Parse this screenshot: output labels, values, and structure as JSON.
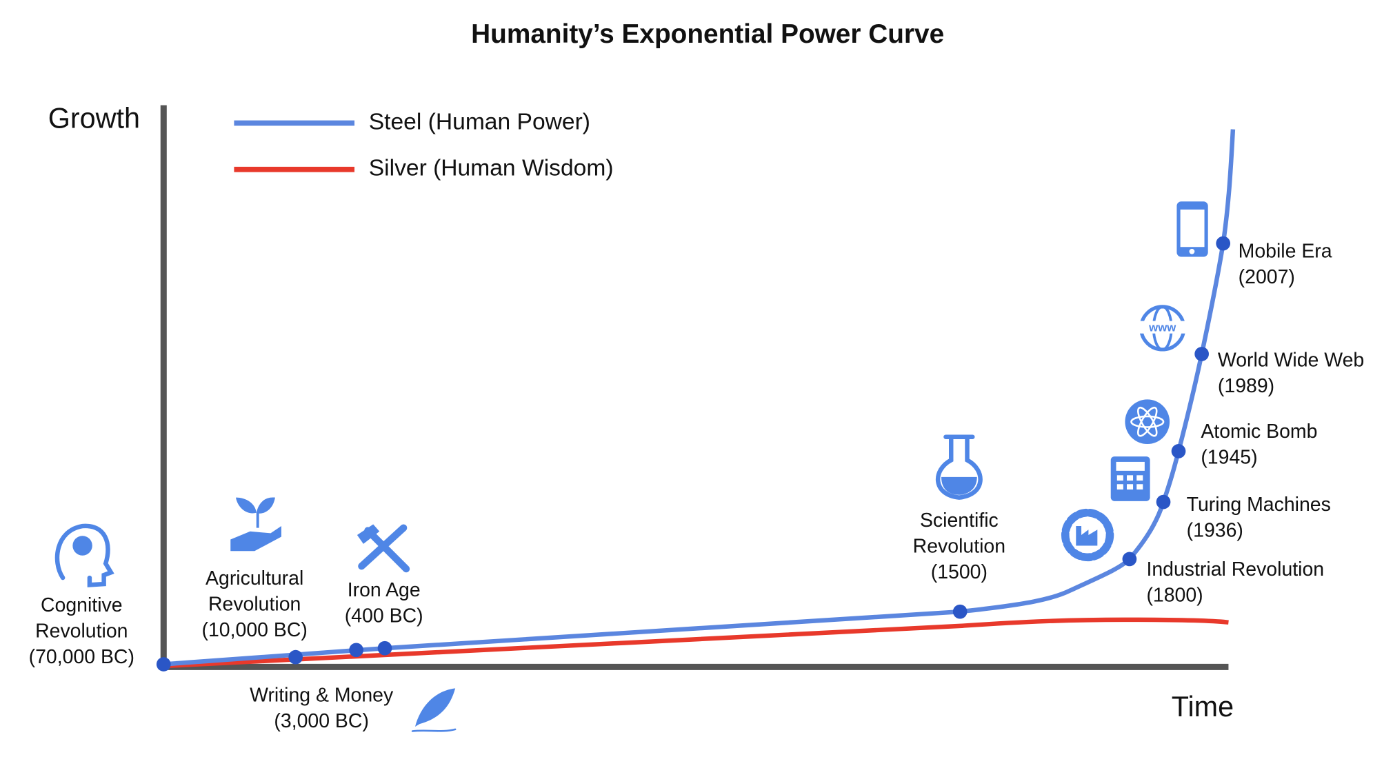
{
  "title": "Humanity’s Exponential Power Curve",
  "axes": {
    "y_label": "Growth",
    "x_label": "Time"
  },
  "legend": [
    {
      "name": "Steel (Human Power)",
      "color": "#5b86df"
    },
    {
      "name": "Silver (Human Wisdom)",
      "color": "#e8392b"
    }
  ],
  "milestones": [
    {
      "lines": [
        "Cognitive",
        "Revolution",
        "(70,000 BC)"
      ]
    },
    {
      "lines": [
        "Agricultural",
        "Revolution",
        "(10,000 BC)"
      ]
    },
    {
      "lines": [
        "Iron Age",
        "(400 BC)"
      ]
    },
    {
      "lines": [
        "Writing & Money",
        "(3,000 BC)"
      ]
    },
    {
      "lines": [
        "Scientific",
        "Revolution",
        "(1500)"
      ]
    },
    {
      "lines": [
        "Industrial Revolution",
        "(1800)"
      ]
    },
    {
      "lines": [
        "Turing Machines",
        "(1936)"
      ]
    },
    {
      "lines": [
        "Atomic Bomb",
        "(1945)"
      ]
    },
    {
      "lines": [
        "World Wide Web",
        "(1989)"
      ]
    },
    {
      "lines": [
        "Mobile Era",
        "(2007)"
      ]
    }
  ]
}
